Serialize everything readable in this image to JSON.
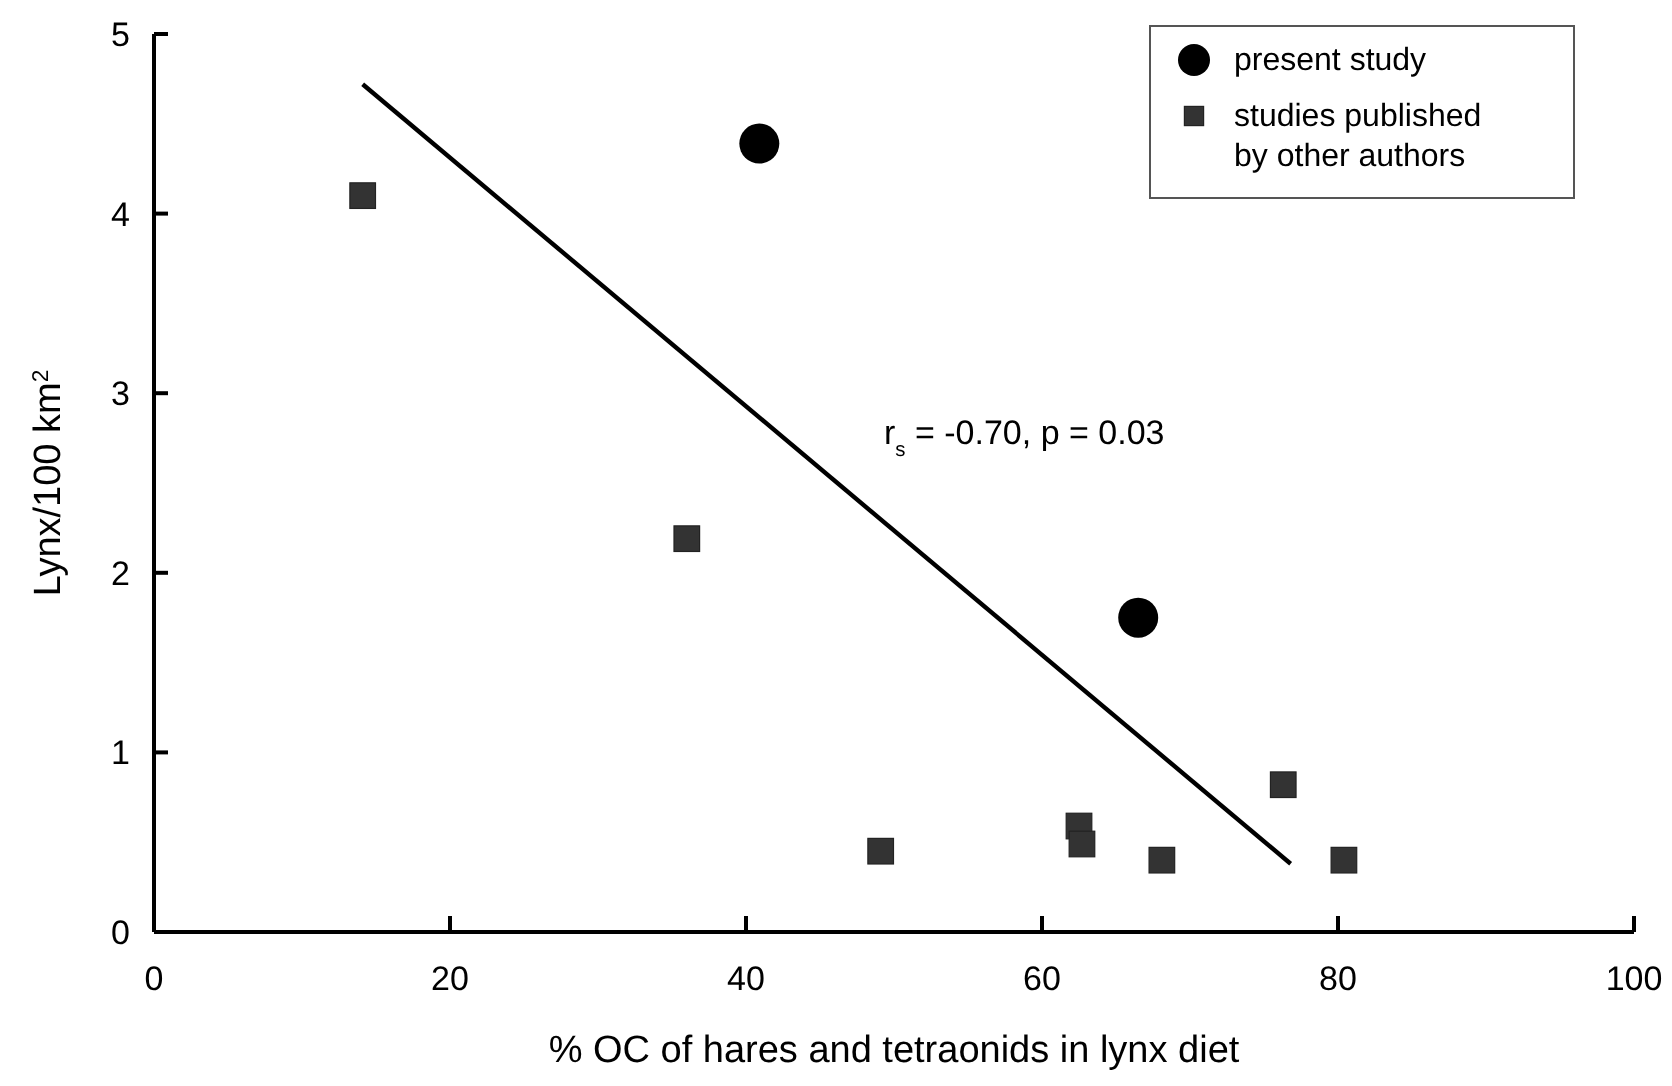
{
  "chart_data": {
    "type": "scatter",
    "xlabel": "% OC of hares and tetraonids in lynx diet",
    "ylabel": "Lynx/100 km$^{2}$",
    "xlim": [
      0,
      100
    ],
    "ylim": [
      0,
      5
    ],
    "xticks": [
      0,
      20,
      40,
      60,
      80,
      100
    ],
    "yticks": [
      0,
      1,
      2,
      3,
      4,
      5
    ],
    "grid": false,
    "legend": "top right",
    "series": [
      {
        "name": "present study",
        "marker": "circle",
        "color": "#000000",
        "x": [
          40.9,
          66.5
        ],
        "values": [
          4.39,
          1.75
        ]
      },
      {
        "name": "studies published by other authors",
        "marker": "square",
        "color": "#333333",
        "x": [
          14.1,
          36.0,
          49.1,
          62.5,
          62.7,
          68.1,
          76.3,
          80.4
        ],
        "values": [
          4.1,
          2.19,
          0.45,
          0.59,
          0.49,
          0.4,
          0.82,
          0.4
        ]
      },
      {
        "type": "line",
        "color": "#000000",
        "x": [
          14.1,
          76.8
        ],
        "values": [
          4.72,
          0.38
        ]
      }
    ],
    "annotations": [
      "r$_{s}$ = -0.70, p = 0.03"
    ]
  }
}
